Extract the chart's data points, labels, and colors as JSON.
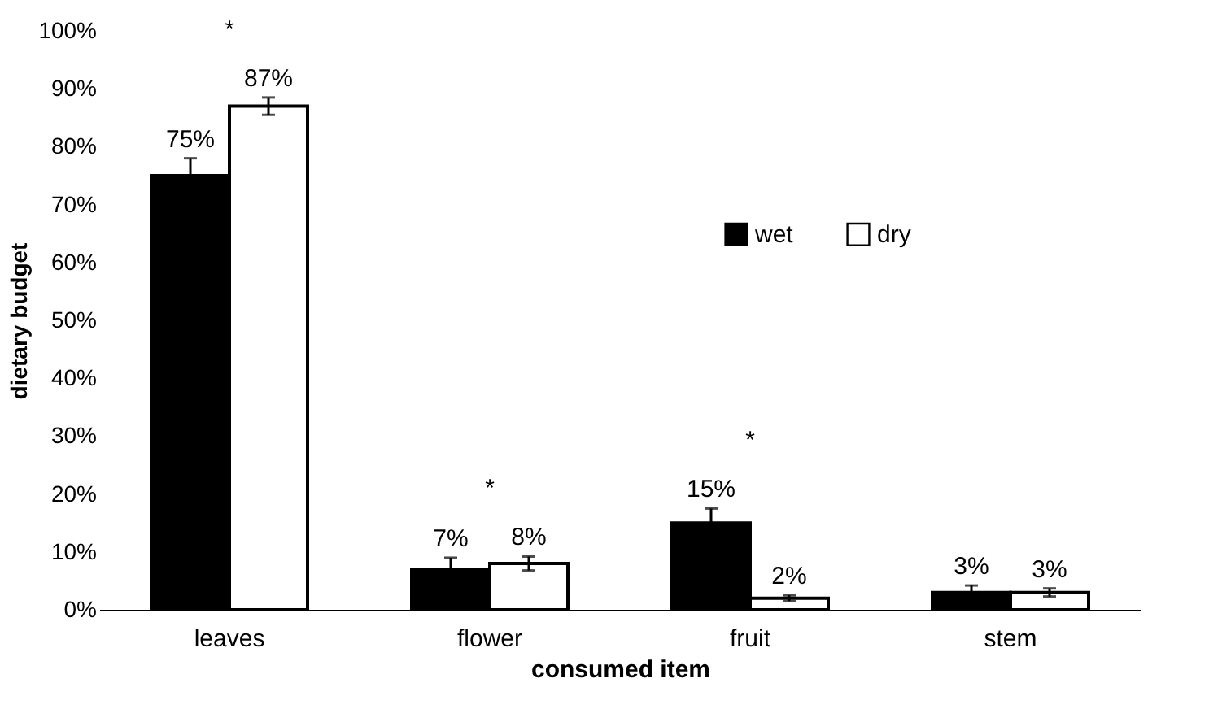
{
  "chart_data": {
    "type": "bar",
    "xlabel": "consumed item",
    "ylabel": "dietary budget",
    "categories": [
      "leaves",
      "flower",
      "fruit",
      "stem"
    ],
    "series": [
      {
        "name": "wet",
        "color": "#000000",
        "values": [
          75,
          7,
          15,
          3
        ],
        "errors": [
          3,
          2,
          2.5,
          1.2
        ],
        "value_labels": [
          "75%",
          "7%",
          "15%",
          "3%"
        ]
      },
      {
        "name": "dry",
        "color": "#ffffff",
        "values": [
          87,
          8,
          2,
          3
        ],
        "errors": [
          1.5,
          1.2,
          0.5,
          0.7
        ],
        "value_labels": [
          "87%",
          "8%",
          "2%",
          "3%"
        ]
      }
    ],
    "ylim": [
      0,
      100
    ],
    "yticks": [
      {
        "value": 0,
        "label": "0%"
      },
      {
        "value": 10,
        "label": "10%"
      },
      {
        "value": 20,
        "label": "20%"
      },
      {
        "value": 30,
        "label": "30%"
      },
      {
        "value": 40,
        "label": "40%"
      },
      {
        "value": 50,
        "label": "50%"
      },
      {
        "value": 60,
        "label": "60%"
      },
      {
        "value": 70,
        "label": "70%"
      },
      {
        "value": 80,
        "label": "80%"
      },
      {
        "value": 90,
        "label": "90%"
      },
      {
        "value": 100,
        "label": "100%"
      }
    ],
    "annotations": [
      "*",
      "*",
      "*"
    ],
    "legend": "right",
    "grid": false
  }
}
